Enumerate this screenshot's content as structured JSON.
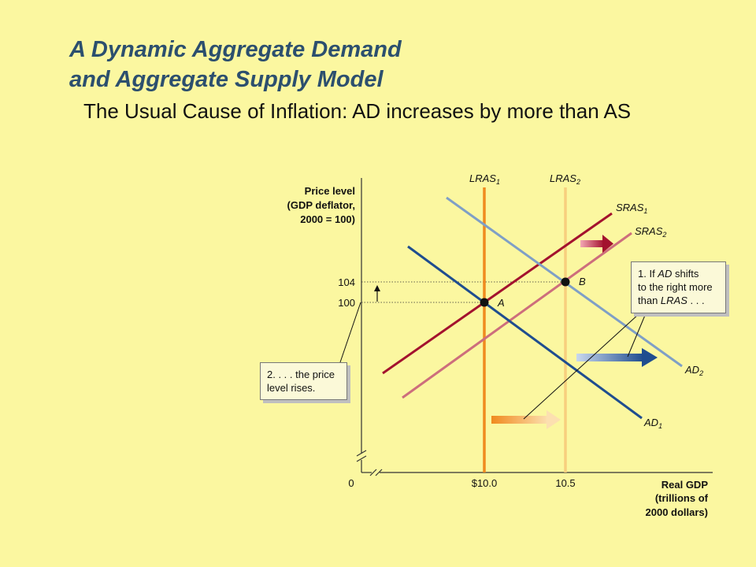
{
  "slide": {
    "title_line1": "A Dynamic Aggregate Demand",
    "title_line2": "and Aggregate Supply Model",
    "subtitle": "The Usual Cause of Inflation:  AD increases by more than AS"
  },
  "axes": {
    "y_label_line1": "Price level",
    "y_label_line2": "(GDP deflator,",
    "y_label_line3": "2000 = 100)",
    "x_label_line1": "Real GDP",
    "x_label_line2": "(trillions of",
    "x_label_line3": "2000 dollars)",
    "origin": "0",
    "x_ticks": [
      "$10.0",
      "10.5"
    ],
    "y_ticks": [
      "104",
      "100"
    ]
  },
  "curves": {
    "lras1": {
      "name": "LRAS",
      "sub": "1",
      "color": "#f08a1e"
    },
    "lras2": {
      "name": "LRAS",
      "sub": "2",
      "color": "#f7cf7e"
    },
    "sras1": {
      "name": "SRAS",
      "sub": "1",
      "color": "#a3122e"
    },
    "sras2": {
      "name": "SRAS",
      "sub": "2",
      "color": "#cd6e7c"
    },
    "ad1": {
      "name": "AD",
      "sub": "1",
      "color": "#1f4d8f"
    },
    "ad2": {
      "name": "AD",
      "sub": "2",
      "color": "#7f9fc6"
    }
  },
  "points": {
    "a": "A",
    "b": "B"
  },
  "notes": {
    "note1_prefix": "1.  If ",
    "note1_italic": "AD",
    "note1_mid": " shifts",
    "note1_line2": "to the right more",
    "note1_line3_prefix": "than ",
    "note1_line3_italic": "LRAS",
    "note1_line3_suffix": " . . .",
    "note2_line1": "2. . . . the price",
    "note2_line2": "level rises."
  }
}
